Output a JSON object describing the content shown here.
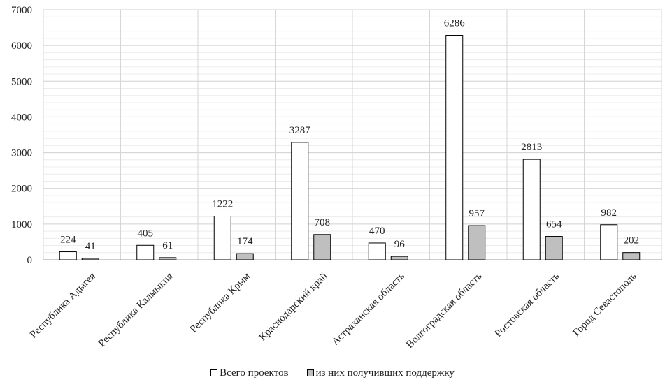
{
  "chart_data": {
    "type": "bar",
    "categories": [
      "Республика Адыгея",
      "Республика Калмыкия",
      "Республика Крым",
      "Краснодарский край",
      "Астраханская  область",
      "Волгоградская область",
      "Ростовская область",
      "Город Севастополь"
    ],
    "series": [
      {
        "name": "Всего проектов",
        "values": [
          224,
          405,
          1222,
          3287,
          470,
          6286,
          2813,
          982
        ],
        "color": "#ffffff"
      },
      {
        "name": "из них получивших поддержку",
        "values": [
          41,
          61,
          174,
          708,
          96,
          957,
          654,
          202
        ],
        "color": "#bfbfbf"
      }
    ],
    "ylim": [
      0,
      7000
    ],
    "yticks": [
      0,
      1000,
      2000,
      3000,
      4000,
      5000,
      6000,
      7000
    ],
    "grid": true,
    "legend": "bottom",
    "data_labels": true,
    "title": "",
    "xlabel": "",
    "ylabel": ""
  }
}
